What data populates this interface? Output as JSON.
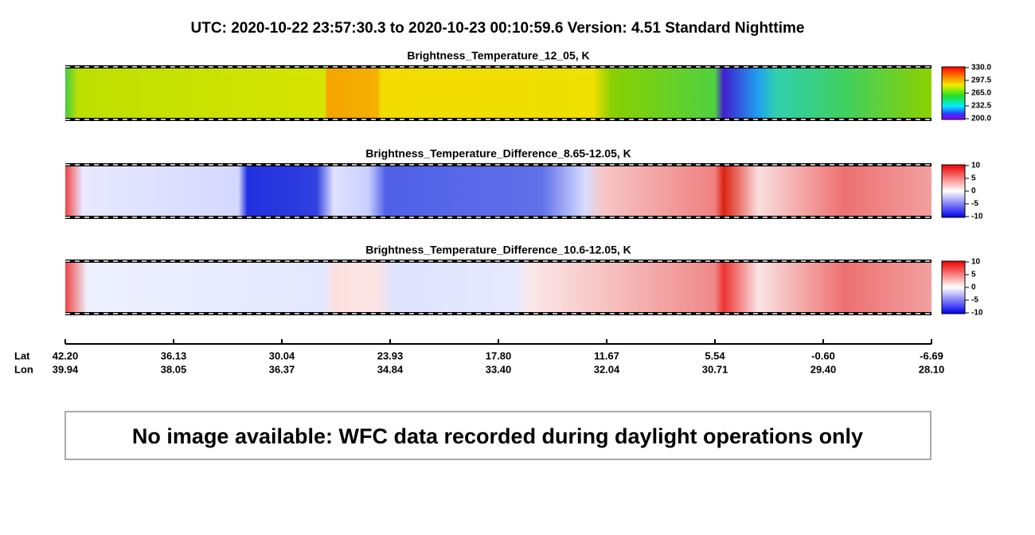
{
  "title": "UTC:  2020-10-22   23:57:30.3  to  2020-10-23   00:10:59.6   Version: 4.51  Standard Nighttime",
  "panels": [
    {
      "title": "Brightness_Temperature_12_05, K",
      "colorbar": [
        "330.0",
        "297.5",
        "265.0",
        "232.5",
        "200.0"
      ]
    },
    {
      "title": "Brightness_Temperature_Difference_8.65-12.05, K",
      "colorbar": [
        "10",
        "5",
        "0",
        "-5",
        "-10"
      ]
    },
    {
      "title": "Brightness_Temperature_Difference_10.6-12.05, K",
      "colorbar": [
        "10",
        "5",
        "0",
        "-5",
        "-10"
      ]
    }
  ],
  "axis": {
    "lat_label": "Lat",
    "lon_label": "Lon",
    "lat": [
      "42.20",
      "36.13",
      "30.04",
      "23.93",
      "17.80",
      "11.67",
      "5.54",
      "-0.60",
      "-6.69"
    ],
    "lon": [
      "39.94",
      "38.05",
      "36.37",
      "34.84",
      "33.40",
      "32.04",
      "30.71",
      "29.40",
      "28.10"
    ]
  },
  "notice": "No image available: WFC data recorded during daylight operations only"
}
